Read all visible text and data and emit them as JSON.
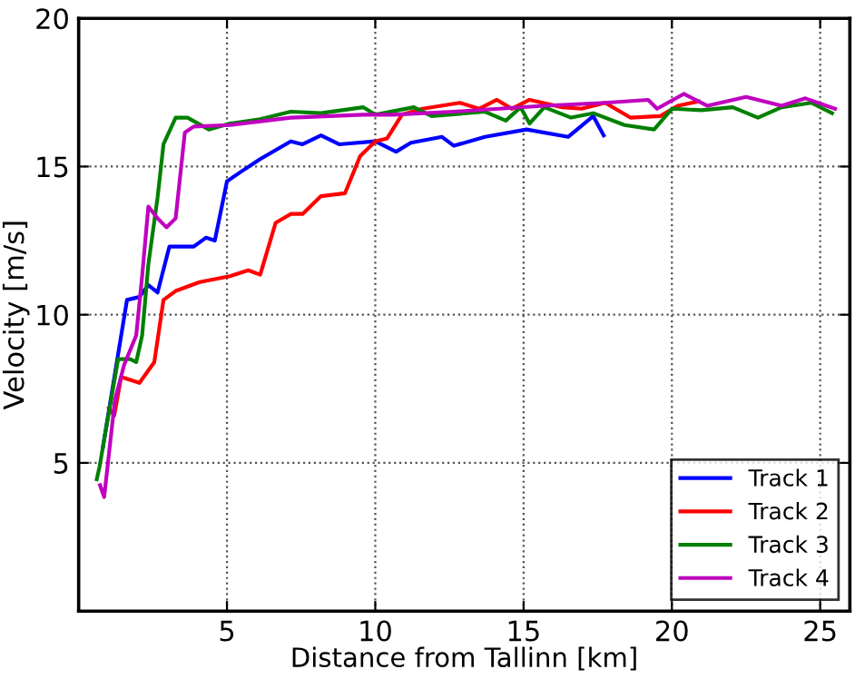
{
  "chart_data": {
    "type": "line",
    "xlabel": "Distance from Tallinn [km]",
    "ylabel": "Velocity [m/s]",
    "xlim": [
      0,
      26
    ],
    "ylim": [
      0,
      20
    ],
    "xticks": [
      5,
      10,
      15,
      20,
      25
    ],
    "yticks": [
      5,
      10,
      15,
      20
    ],
    "grid": true,
    "legend": "bottom right",
    "marker": "none",
    "line_style": "solid",
    "series": [
      {
        "name": "Track 1",
        "color": "#0000ff",
        "x": [
          0.82,
          1.63,
          2.05,
          2.35,
          2.66,
          3.06,
          3.88,
          4.29,
          4.59,
          5.0,
          5.51,
          6.12,
          7.15,
          7.55,
          8.17,
          8.78,
          10.0,
          10.7,
          11.2,
          12.25,
          12.65,
          13.7,
          15.1,
          16.5,
          17.35,
          17.7
        ],
        "values": [
          5.55,
          10.5,
          10.6,
          11.0,
          10.75,
          12.3,
          12.3,
          12.6,
          12.5,
          14.5,
          14.85,
          15.25,
          15.85,
          15.75,
          16.05,
          15.75,
          15.85,
          15.5,
          15.8,
          16.0,
          15.7,
          16.0,
          16.25,
          16.0,
          16.7,
          16.05
        ]
      },
      {
        "name": "Track 2",
        "color": "#ff0000",
        "x": [
          1.02,
          1.2,
          1.43,
          2.05,
          2.55,
          2.86,
          3.27,
          4.08,
          5.1,
          5.72,
          6.12,
          6.64,
          7.15,
          7.55,
          8.17,
          8.98,
          9.49,
          10.0,
          10.4,
          10.9,
          11.6,
          12.85,
          13.5,
          14.1,
          14.6,
          15.2,
          16.3,
          16.95,
          17.75,
          18.6,
          19.6,
          20.2,
          20.9
        ],
        "values": [
          6.85,
          6.6,
          7.9,
          7.7,
          8.4,
          10.5,
          10.8,
          11.1,
          11.3,
          11.5,
          11.35,
          13.1,
          13.4,
          13.4,
          14.0,
          14.1,
          15.35,
          15.85,
          15.95,
          16.75,
          16.95,
          17.15,
          16.95,
          17.25,
          16.95,
          17.25,
          17.0,
          16.95,
          17.15,
          16.65,
          16.7,
          17.05,
          17.2
        ]
      },
      {
        "name": "Track 3",
        "color": "#008000",
        "x": [
          0.61,
          0.7,
          1.33,
          1.74,
          1.94,
          2.14,
          2.35,
          2.66,
          2.86,
          3.27,
          3.67,
          4.39,
          5.1,
          6.12,
          7.15,
          8.17,
          9.6,
          10.0,
          11.3,
          11.9,
          13.7,
          14.4,
          14.9,
          15.2,
          15.7,
          16.6,
          17.35,
          18.4,
          19.4,
          20.0,
          21.0,
          22.05,
          22.9,
          23.7,
          24.7,
          25.4
        ],
        "values": [
          4.45,
          4.85,
          8.5,
          8.5,
          8.4,
          9.3,
          11.7,
          13.95,
          15.75,
          16.65,
          16.65,
          16.25,
          16.45,
          16.6,
          16.85,
          16.8,
          17.0,
          16.75,
          17.0,
          16.7,
          16.85,
          16.55,
          17.0,
          16.45,
          17.0,
          16.65,
          16.8,
          16.4,
          16.25,
          16.95,
          16.9,
          17.0,
          16.65,
          17.0,
          17.15,
          16.8
        ]
      },
      {
        "name": "Track 4",
        "color": "#bf00bf",
        "x": [
          0.72,
          0.86,
          1.22,
          1.53,
          1.94,
          2.14,
          2.35,
          2.66,
          2.96,
          3.27,
          3.58,
          3.88,
          5.1,
          7.15,
          9.6,
          10.6,
          12.65,
          15.7,
          17.75,
          19.2,
          19.5,
          20.4,
          21.2,
          22.5,
          23.7,
          24.5,
          25.5
        ],
        "values": [
          4.25,
          3.85,
          7.1,
          8.3,
          9.3,
          11.3,
          13.65,
          13.25,
          12.95,
          13.25,
          16.15,
          16.35,
          16.4,
          16.65,
          16.75,
          16.75,
          16.85,
          17.05,
          17.15,
          17.25,
          16.95,
          17.45,
          17.05,
          17.35,
          17.05,
          17.3,
          16.95
        ]
      }
    ]
  }
}
